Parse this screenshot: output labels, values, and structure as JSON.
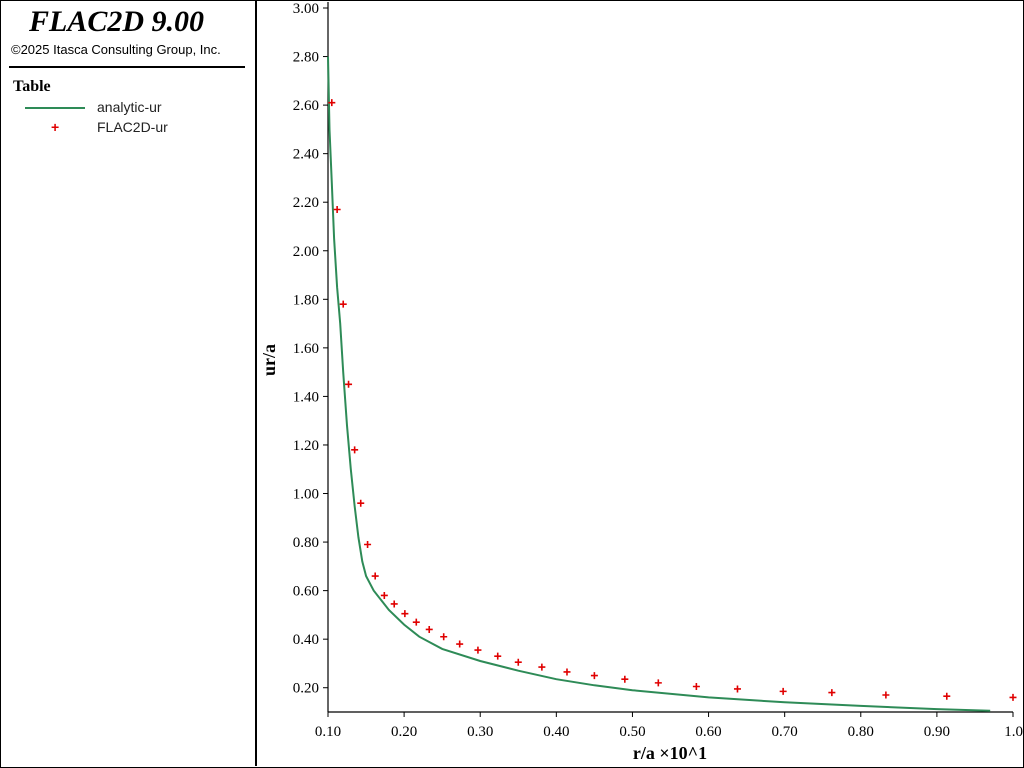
{
  "app": {
    "title": "FLAC2D 9.00",
    "copyright": "©2025 Itasca Consulting Group, Inc."
  },
  "legend": {
    "title": "Table",
    "items": [
      {
        "label": "analytic-ur",
        "style": "line",
        "color": "#2e8b57"
      },
      {
        "label": "FLAC2D-ur",
        "style": "plus",
        "color": "#e00000"
      }
    ]
  },
  "chart_data": {
    "type": "line",
    "xlabel": "r/a ×10^1",
    "ylabel": "ur/a",
    "xlim": [
      0.1,
      1.0
    ],
    "ylim": [
      0.1,
      3.0
    ],
    "x_ticks": [
      "0.10",
      "0.20",
      "0.30",
      "0.40",
      "0.50",
      "0.60",
      "0.70",
      "0.80",
      "0.90",
      "1.0"
    ],
    "y_ticks": [
      "0.20",
      "0.40",
      "0.60",
      "0.80",
      "1.00",
      "1.20",
      "1.40",
      "1.60",
      "1.80",
      "2.00",
      "2.20",
      "2.40",
      "2.60",
      "2.80",
      "3.00"
    ],
    "grid": false,
    "series": [
      {
        "name": "analytic-ur",
        "style": "line",
        "color": "#2e8b57",
        "x": [
          0.1,
          0.102,
          0.105,
          0.108,
          0.112,
          0.116,
          0.12,
          0.125,
          0.13,
          0.135,
          0.14,
          0.145,
          0.15,
          0.16,
          0.17,
          0.18,
          0.2,
          0.22,
          0.25,
          0.3,
          0.35,
          0.4,
          0.45,
          0.5,
          0.6,
          0.7,
          0.8,
          0.9,
          0.97
        ],
        "y": [
          2.8,
          2.5,
          2.28,
          2.05,
          1.85,
          1.7,
          1.5,
          1.28,
          1.1,
          0.95,
          0.82,
          0.72,
          0.66,
          0.6,
          0.56,
          0.52,
          0.46,
          0.41,
          0.36,
          0.31,
          0.27,
          0.235,
          0.21,
          0.19,
          0.16,
          0.14,
          0.125,
          0.112,
          0.105
        ]
      },
      {
        "name": "FLAC2D-ur",
        "style": "plus",
        "color": "#e00000",
        "x": [
          0.105,
          0.112,
          0.12,
          0.127,
          0.135,
          0.143,
          0.152,
          0.162,
          0.174,
          0.187,
          0.201,
          0.216,
          0.233,
          0.252,
          0.273,
          0.297,
          0.323,
          0.35,
          0.381,
          0.414,
          0.45,
          0.49,
          0.534,
          0.584,
          0.638,
          0.698,
          0.762,
          0.833,
          0.913,
          1.0
        ],
        "y": [
          2.61,
          2.17,
          1.78,
          1.45,
          1.18,
          0.96,
          0.79,
          0.66,
          0.58,
          0.545,
          0.505,
          0.47,
          0.44,
          0.41,
          0.38,
          0.355,
          0.33,
          0.305,
          0.285,
          0.265,
          0.25,
          0.235,
          0.22,
          0.205,
          0.195,
          0.185,
          0.18,
          0.17,
          0.165,
          0.16
        ]
      }
    ]
  }
}
